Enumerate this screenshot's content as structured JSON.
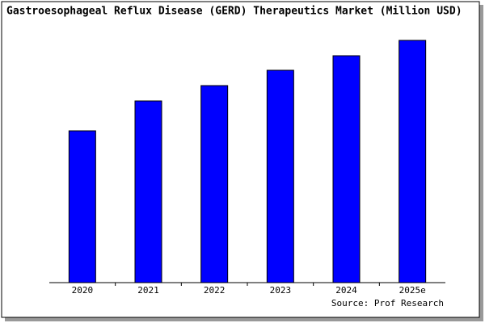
{
  "chart_data": {
    "type": "bar",
    "title": "Gastroesophageal Reflux Disease (GERD) Therapeutics Market (Million USD)",
    "source": "Source: Prof Research",
    "categories": [
      "2020",
      "2021",
      "2022",
      "2023",
      "2024",
      "2025e"
    ],
    "values": [
      188,
      225,
      244,
      263,
      281,
      300
    ],
    "color": "#0000ff",
    "ylim": [
      0,
      305
    ]
  }
}
